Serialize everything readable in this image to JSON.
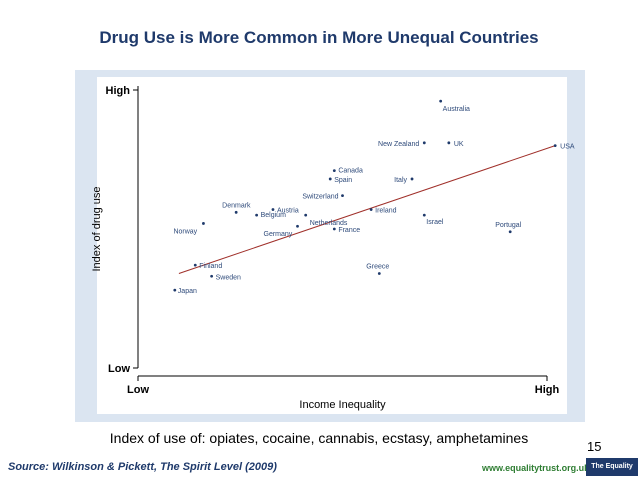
{
  "slide": {
    "title": "Drug Use is More Common in More Unequal Countries",
    "note": "Index of use of: opiates, cocaine, cannabis, ecstasy, amphetamines",
    "page_number": "15",
    "source": "Source: Wilkinson & Pickett, The Spirit Level (2009)",
    "url": "www.equalitytrust.org.uk",
    "logo_text": "The Equality Trust"
  },
  "colors": {
    "frame_bg": "#dbe5f1",
    "point": "#1f3a6b",
    "fit_line": "#a0302a",
    "title": "#1f3a6b"
  },
  "chart_data": {
    "type": "scatter",
    "title": "",
    "xlabel": "Income Inequality",
    "ylabel": "Index of drug use",
    "x_ticks": [
      {
        "value": 0,
        "label": "Low"
      },
      {
        "value": 100,
        "label": "High"
      }
    ],
    "y_ticks": [
      {
        "value": 0,
        "label": "Low"
      },
      {
        "value": 100,
        "label": "High"
      }
    ],
    "xlim": [
      0,
      100
    ],
    "ylim": [
      0,
      100
    ],
    "grid": false,
    "points": [
      {
        "label": "Australia",
        "x": 74,
        "y": 96
      },
      {
        "label": "New Zealand",
        "x": 70,
        "y": 81
      },
      {
        "label": "UK",
        "x": 76,
        "y": 81
      },
      {
        "label": "USA",
        "x": 102,
        "y": 80
      },
      {
        "label": "Canada",
        "x": 48,
        "y": 71
      },
      {
        "label": "Spain",
        "x": 47,
        "y": 68
      },
      {
        "label": "Italy",
        "x": 67,
        "y": 68
      },
      {
        "label": "Switzerland",
        "x": 50,
        "y": 62
      },
      {
        "label": "Denmark",
        "x": 24,
        "y": 56
      },
      {
        "label": "Austria",
        "x": 33,
        "y": 57
      },
      {
        "label": "Belgium",
        "x": 29,
        "y": 55
      },
      {
        "label": "Ireland",
        "x": 57,
        "y": 57
      },
      {
        "label": "Netherlands",
        "x": 41,
        "y": 55
      },
      {
        "label": "Israel",
        "x": 70,
        "y": 55
      },
      {
        "label": "Norway",
        "x": 16,
        "y": 52
      },
      {
        "label": "Germany",
        "x": 39,
        "y": 51
      },
      {
        "label": "France",
        "x": 48,
        "y": 50
      },
      {
        "label": "Portugal",
        "x": 91,
        "y": 49
      },
      {
        "label": "Finland",
        "x": 14,
        "y": 37
      },
      {
        "label": "Sweden",
        "x": 18,
        "y": 33
      },
      {
        "label": "Greece",
        "x": 59,
        "y": 34
      },
      {
        "label": "Japan",
        "x": 9,
        "y": 28
      }
    ],
    "trendline": {
      "x": [
        10,
        102
      ],
      "y": [
        34,
        80
      ]
    }
  }
}
